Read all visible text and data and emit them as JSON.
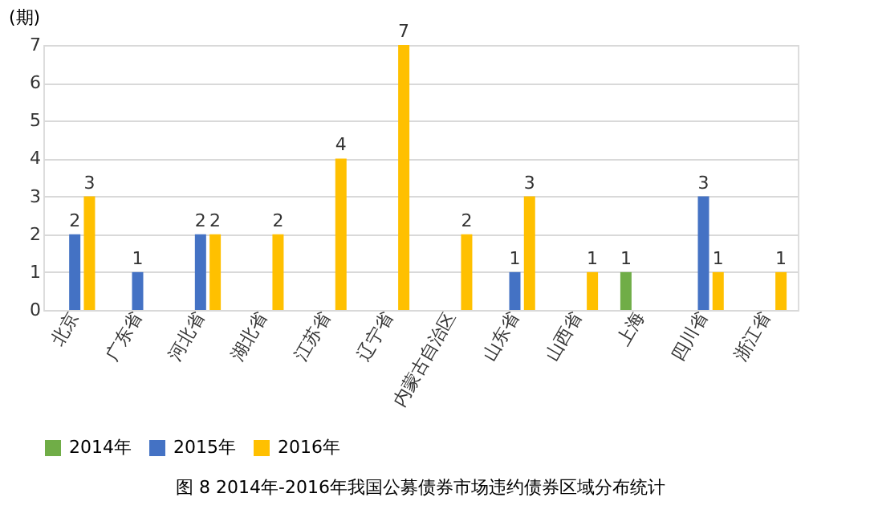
{
  "chart_data": {
    "type": "bar",
    "ylabel": "(期)",
    "categories": [
      "北京",
      "广东省",
      "河北省",
      "湖北省",
      "江苏省",
      "辽宁省",
      "内蒙古自治区",
      "山东省",
      "山西省",
      "上海",
      "四川省",
      "浙江省"
    ],
    "series": [
      {
        "name": "2014年",
        "color": "#70ad47",
        "values": [
          null,
          null,
          null,
          null,
          null,
          null,
          null,
          null,
          null,
          1,
          null,
          null
        ]
      },
      {
        "name": "2015年",
        "color": "#4472c4",
        "values": [
          2,
          1,
          2,
          null,
          null,
          null,
          null,
          1,
          null,
          null,
          3,
          null
        ]
      },
      {
        "name": "2016年",
        "color": "#ffc000",
        "values": [
          3,
          null,
          2,
          2,
          4,
          7,
          2,
          3,
          1,
          null,
          1,
          1
        ]
      }
    ],
    "ylim": [
      0,
      7
    ],
    "yticks": [
      0,
      1,
      2,
      3,
      4,
      5,
      6,
      7
    ],
    "grid": "y",
    "legend": "bottom",
    "data_labels": true,
    "annotations": [
      "图 8  2014年-2016年我国公募债券市场违约债券区域分布统计"
    ]
  }
}
